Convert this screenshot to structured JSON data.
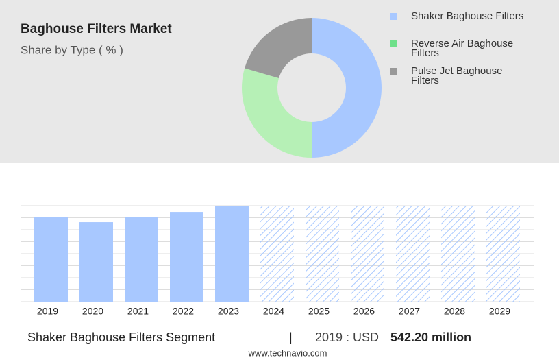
{
  "chart_data": [
    {
      "type": "donut",
      "title": "Baghouse Filters Market",
      "subtitle": "Share by Type ( % )",
      "categories": [
        "Shaker Baghouse Filters",
        "Reverse Air Baghouse Filters",
        "Pulse Jet Baghouse Filters"
      ],
      "values": [
        50,
        29.5,
        20.5
      ],
      "colors": [
        "#a8c8ff",
        "#b6f0b6",
        "#999999"
      ],
      "legend_colors": [
        "#a8c8ff",
        "#6ee08a",
        "#999999"
      ]
    },
    {
      "type": "bar",
      "categories": [
        "2019",
        "2020",
        "2021",
        "2022",
        "2023",
        "2024",
        "2025",
        "2026",
        "2027",
        "2028",
        "2029"
      ],
      "values": [
        542.2,
        511,
        542,
        577,
        617,
        null,
        null,
        null,
        null,
        null,
        null
      ],
      "color": "#a8c8ff",
      "ylim": [
        0,
        617
      ],
      "grid": true
    }
  ],
  "footer": {
    "segment": "Shaker Baghouse Filters Segment",
    "separator": "|",
    "year_label": "2019 : USD",
    "value_label": "542.20 million",
    "source": "www.technavio.com"
  }
}
